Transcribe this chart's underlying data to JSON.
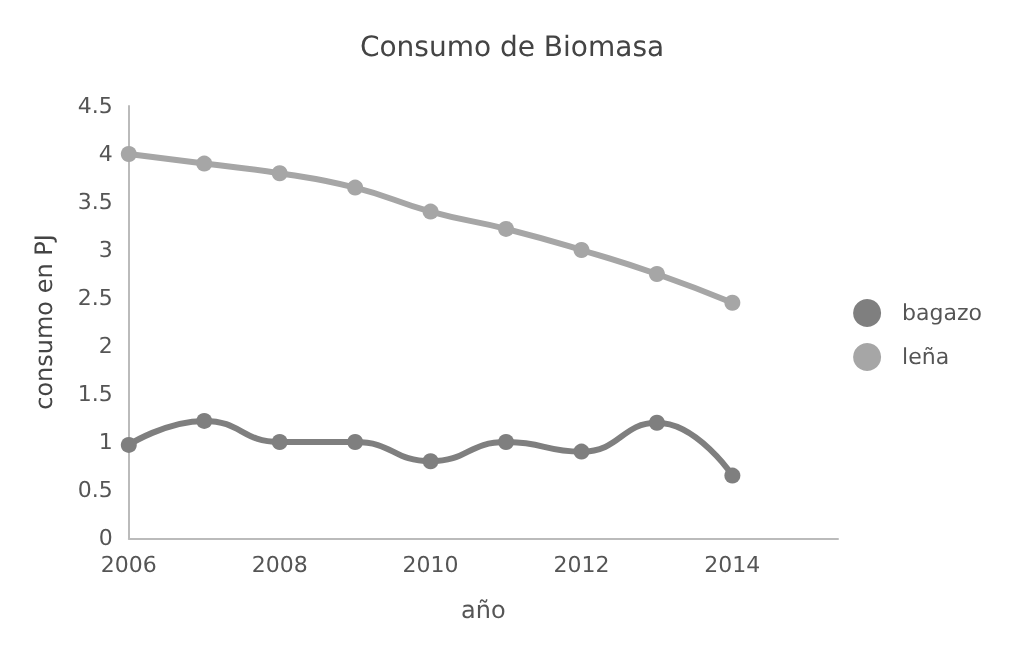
{
  "chart_data": {
    "type": "line",
    "title": "Consumo de Biomasa",
    "xlabel": "año",
    "ylabel": "consumo en PJ",
    "x": [
      2006,
      2007,
      2008,
      2009,
      2010,
      2011,
      2012,
      2013,
      2014
    ],
    "series": [
      {
        "name": "bagazo",
        "color": "#7f7f7f",
        "values": [
          0.97,
          1.22,
          1.0,
          1.0,
          0.8,
          1.0,
          0.9,
          1.2,
          0.65
        ]
      },
      {
        "name": "leña",
        "color": "#a6a6a6",
        "values": [
          4.0,
          3.9,
          3.8,
          3.65,
          3.4,
          3.22,
          3.0,
          2.75,
          2.45
        ]
      }
    ],
    "xlim": [
      2006,
      2015.4
    ],
    "xticks": [
      2006,
      2008,
      2010,
      2012,
      2014
    ],
    "ylim": [
      0,
      4.5
    ],
    "yticks": [
      0,
      0.5,
      1,
      1.5,
      2,
      2.5,
      3,
      3.5,
      4,
      4.5
    ],
    "grid": false,
    "legend": "right",
    "marker": "circle",
    "line_style": "solid"
  }
}
